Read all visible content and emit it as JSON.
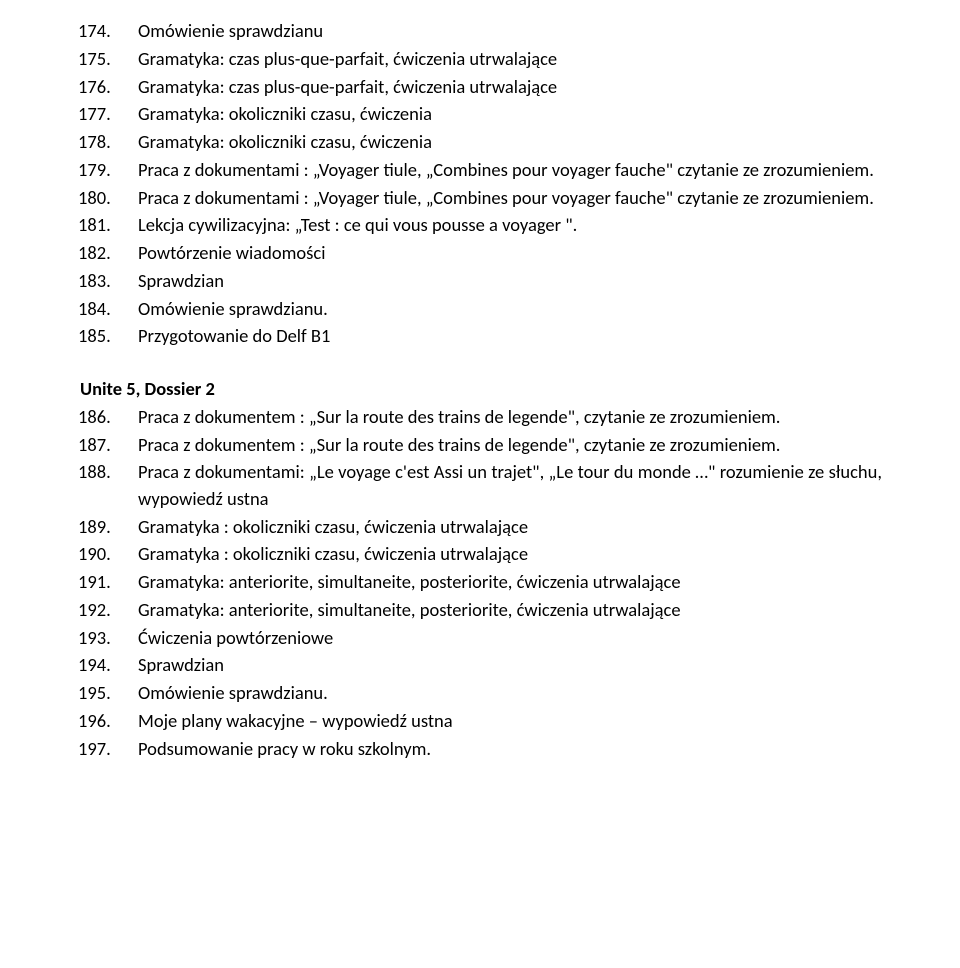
{
  "section1": [
    {
      "n": "174.",
      "t": "Omówienie sprawdzianu"
    },
    {
      "n": "175.",
      "t": "Gramatyka: czas plus-que-parfait, ćwiczenia utrwalające"
    },
    {
      "n": "176.",
      "t": "Gramatyka: czas plus-que-parfait, ćwiczenia utrwalające"
    },
    {
      "n": "177.",
      "t": "Gramatyka: okoliczniki czasu, ćwiczenia"
    },
    {
      "n": "178.",
      "t": "Gramatyka: okoliczniki czasu, ćwiczenia"
    },
    {
      "n": "179.",
      "t": "Praca z dokumentami : „Voyager tiule, „Combines pour voyager fauche\" czytanie ze zrozumieniem."
    },
    {
      "n": "180.",
      "t": "Praca z dokumentami : „Voyager tiule, „Combines pour voyager fauche\" czytanie ze zrozumieniem."
    },
    {
      "n": "181.",
      "t": "Lekcja cywilizacyjna: „Test : ce qui vous pousse a voyager \"."
    },
    {
      "n": "182.",
      "t": "Powtórzenie wiadomości"
    },
    {
      "n": "183.",
      "t": "Sprawdzian"
    },
    {
      "n": "184.",
      "t": "Omówienie sprawdzianu."
    },
    {
      "n": "185.",
      "t": "Przygotowanie do Delf B1"
    }
  ],
  "heading2": "Unite 5, Dossier 2",
  "section2": [
    {
      "n": "186.",
      "t": "Praca z dokumentem : „Sur la route des trains de legende\", czytanie ze zrozumieniem."
    },
    {
      "n": "187.",
      "t": "Praca z dokumentem : „Sur la route des trains de legende\", czytanie ze zrozumieniem."
    },
    {
      "n": "188.",
      "t": "Praca z dokumentami: „Le voyage c'est Assi un trajet\", „Le tour du monde …\" rozumienie ze słuchu, wypowiedź ustna"
    },
    {
      "n": "189.",
      "t": "Gramatyka : okoliczniki czasu, ćwiczenia utrwalające"
    },
    {
      "n": "190.",
      "t": "Gramatyka : okoliczniki czasu, ćwiczenia utrwalające"
    },
    {
      "n": "191.",
      "t": "Gramatyka: anteriorite, simultaneite, posteriorite, ćwiczenia utrwalające"
    },
    {
      "n": "192.",
      "t": "Gramatyka: anteriorite, simultaneite, posteriorite, ćwiczenia utrwalające"
    },
    {
      "n": "193.",
      "t": "Ćwiczenia powtórzeniowe"
    },
    {
      "n": "194.",
      "t": "Sprawdzian"
    },
    {
      "n": "195.",
      "t": "Omówienie sprawdzianu."
    },
    {
      "n": "196.",
      "t": "Moje plany wakacyjne – wypowiedź ustna"
    },
    {
      "n": "197.",
      "t": "Podsumowanie pracy w roku szkolnym."
    }
  ]
}
